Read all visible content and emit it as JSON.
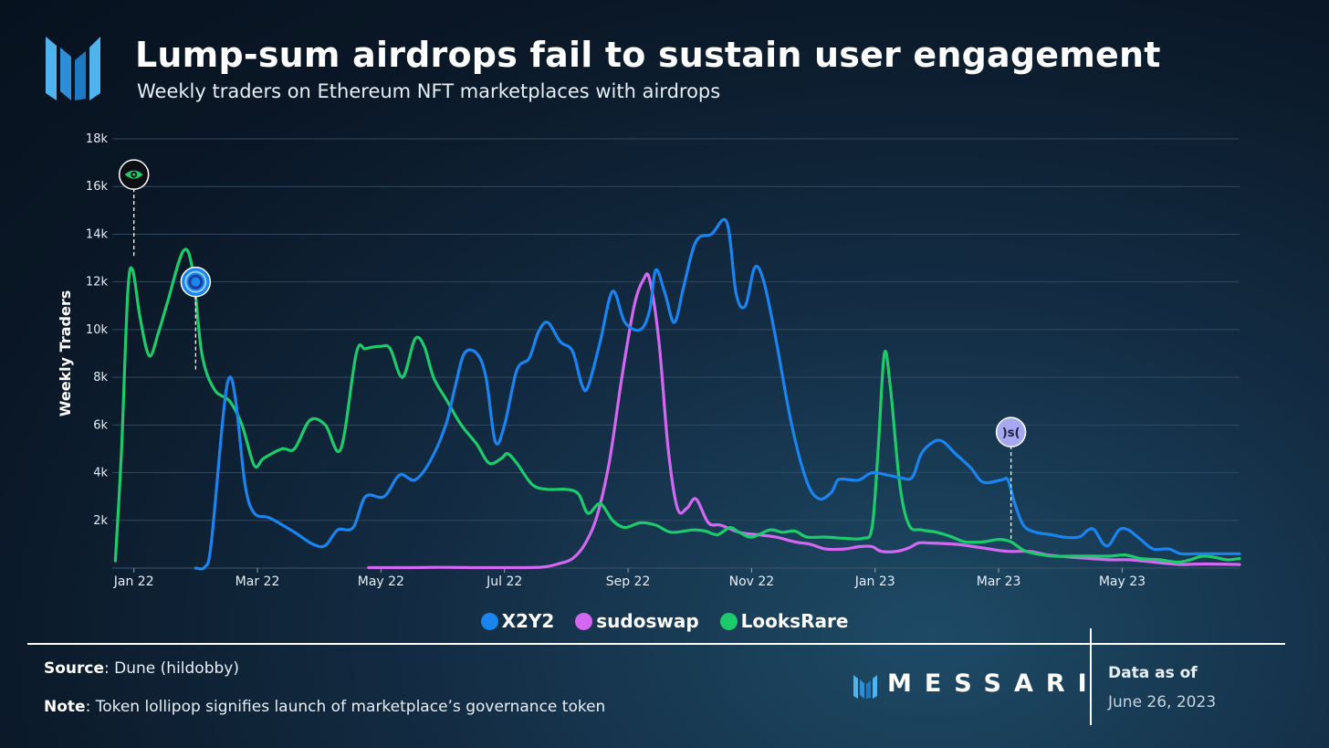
{
  "header": {
    "title": "Lump-sum airdrops fail to sustain user engagement",
    "subtitle": "Weekly traders on Ethereum NFT marketplaces with airdrops"
  },
  "chart_data": {
    "type": "line",
    "ylabel": "Weekly Traders",
    "ylim": [
      0,
      18000
    ],
    "y_ticks": [
      "2k",
      "4k",
      "6k",
      "8k",
      "10k",
      "12k",
      "14k",
      "16k",
      "18k"
    ],
    "x_tick_labels": [
      "Jan 22",
      "Mar 22",
      "May 22",
      "Jul 22",
      "Sep 22",
      "Nov 22",
      "Jan 23",
      "Mar 23",
      "May 23"
    ],
    "x_range": [
      -0.35,
      17.9
    ],
    "x_unit": "months since Jan 2022",
    "grid": true,
    "legend_position": "bottom-center",
    "series": [
      {
        "name": "X2Y2",
        "color": "#1a84f0",
        "points": [
          [
            1.0,
            0
          ],
          [
            1.15,
            50
          ],
          [
            1.25,
            1000
          ],
          [
            1.45,
            6500
          ],
          [
            1.55,
            8000
          ],
          [
            1.65,
            7000
          ],
          [
            1.8,
            3500
          ],
          [
            1.95,
            2300
          ],
          [
            2.2,
            2100
          ],
          [
            2.6,
            1500
          ],
          [
            2.9,
            1000
          ],
          [
            3.1,
            950
          ],
          [
            3.3,
            1600
          ],
          [
            3.55,
            1700
          ],
          [
            3.75,
            3000
          ],
          [
            4.05,
            3000
          ],
          [
            4.3,
            3900
          ],
          [
            4.55,
            3700
          ],
          [
            4.8,
            4500
          ],
          [
            5.05,
            6000
          ],
          [
            5.2,
            7600
          ],
          [
            5.35,
            9000
          ],
          [
            5.55,
            9000
          ],
          [
            5.7,
            8000
          ],
          [
            5.85,
            5300
          ],
          [
            6.0,
            6000
          ],
          [
            6.2,
            8300
          ],
          [
            6.4,
            8800
          ],
          [
            6.55,
            9900
          ],
          [
            6.7,
            10300
          ],
          [
            6.9,
            9500
          ],
          [
            7.1,
            9100
          ],
          [
            7.25,
            7700
          ],
          [
            7.35,
            7600
          ],
          [
            7.55,
            9500
          ],
          [
            7.75,
            11600
          ],
          [
            7.95,
            10300
          ],
          [
            8.2,
            10000
          ],
          [
            8.35,
            10800
          ],
          [
            8.45,
            12500
          ],
          [
            8.6,
            11500
          ],
          [
            8.75,
            10300
          ],
          [
            8.9,
            11800
          ],
          [
            9.1,
            13700
          ],
          [
            9.35,
            14000
          ],
          [
            9.6,
            14500
          ],
          [
            9.75,
            11500
          ],
          [
            9.9,
            11000
          ],
          [
            10.05,
            12600
          ],
          [
            10.2,
            12000
          ],
          [
            10.4,
            9500
          ],
          [
            10.65,
            6000
          ],
          [
            10.9,
            3600
          ],
          [
            11.1,
            2900
          ],
          [
            11.3,
            3200
          ],
          [
            11.4,
            3700
          ],
          [
            11.6,
            3700
          ],
          [
            11.75,
            3700
          ],
          [
            11.95,
            4000
          ],
          [
            12.2,
            3900
          ],
          [
            12.4,
            3800
          ],
          [
            12.6,
            3800
          ],
          [
            12.75,
            4800
          ],
          [
            12.95,
            5300
          ],
          [
            13.1,
            5300
          ],
          [
            13.3,
            4800
          ],
          [
            13.55,
            4200
          ],
          [
            13.75,
            3600
          ],
          [
            14.05,
            3700
          ],
          [
            14.15,
            3700
          ],
          [
            14.25,
            2800
          ],
          [
            14.4,
            1800
          ],
          [
            14.6,
            1500
          ],
          [
            14.85,
            1400
          ],
          [
            15.05,
            1300
          ],
          [
            15.3,
            1300
          ],
          [
            15.45,
            1600
          ],
          [
            15.55,
            1600
          ],
          [
            15.7,
            1000
          ],
          [
            15.8,
            1000
          ],
          [
            15.95,
            1600
          ],
          [
            16.1,
            1600
          ],
          [
            16.3,
            1200
          ],
          [
            16.5,
            800
          ],
          [
            16.75,
            800
          ],
          [
            16.95,
            600
          ],
          [
            17.2,
            600
          ],
          [
            17.5,
            600
          ],
          [
            17.8,
            600
          ],
          [
            17.9,
            600
          ]
        ]
      },
      {
        "name": "sudoswap",
        "color": "#d468f2",
        "points": [
          [
            3.8,
            20
          ],
          [
            4.5,
            20
          ],
          [
            5.0,
            30
          ],
          [
            5.5,
            20
          ],
          [
            6.0,
            20
          ],
          [
            6.6,
            40
          ],
          [
            6.9,
            200
          ],
          [
            7.1,
            400
          ],
          [
            7.3,
            1000
          ],
          [
            7.5,
            2200
          ],
          [
            7.7,
            4500
          ],
          [
            7.9,
            8000
          ],
          [
            8.1,
            11000
          ],
          [
            8.25,
            12100
          ],
          [
            8.35,
            12100
          ],
          [
            8.5,
            9500
          ],
          [
            8.65,
            5000
          ],
          [
            8.8,
            2500
          ],
          [
            8.95,
            2500
          ],
          [
            9.1,
            2900
          ],
          [
            9.3,
            1900
          ],
          [
            9.5,
            1800
          ],
          [
            9.8,
            1500
          ],
          [
            10.1,
            1400
          ],
          [
            10.4,
            1300
          ],
          [
            10.7,
            1100
          ],
          [
            10.95,
            1000
          ],
          [
            11.2,
            800
          ],
          [
            11.5,
            800
          ],
          [
            11.75,
            900
          ],
          [
            11.95,
            900
          ],
          [
            12.1,
            700
          ],
          [
            12.35,
            700
          ],
          [
            12.55,
            850
          ],
          [
            12.7,
            1050
          ],
          [
            12.9,
            1050
          ],
          [
            13.3,
            1000
          ],
          [
            13.6,
            900
          ],
          [
            13.85,
            800
          ],
          [
            14.15,
            700
          ],
          [
            14.5,
            700
          ],
          [
            14.8,
            550
          ],
          [
            15.2,
            450
          ],
          [
            15.5,
            400
          ],
          [
            15.8,
            350
          ],
          [
            16.1,
            350
          ],
          [
            16.4,
            280
          ],
          [
            16.7,
            200
          ],
          [
            16.95,
            150
          ],
          [
            17.2,
            170
          ],
          [
            17.5,
            170
          ],
          [
            17.9,
            150
          ]
        ]
      },
      {
        "name": "LooksRare",
        "color": "#1ccc6b",
        "points": [
          [
            -0.3,
            300
          ],
          [
            -0.2,
            5000
          ],
          [
            -0.1,
            11500
          ],
          [
            -0.02,
            12500
          ],
          [
            0.1,
            10500
          ],
          [
            0.25,
            8900
          ],
          [
            0.4,
            9900
          ],
          [
            0.55,
            11200
          ],
          [
            0.8,
            13300
          ],
          [
            0.95,
            12500
          ],
          [
            1.1,
            9000
          ],
          [
            1.3,
            7500
          ],
          [
            1.55,
            7000
          ],
          [
            1.75,
            6000
          ],
          [
            1.95,
            4300
          ],
          [
            2.1,
            4600
          ],
          [
            2.4,
            5000
          ],
          [
            2.6,
            5000
          ],
          [
            2.85,
            6200
          ],
          [
            3.1,
            6000
          ],
          [
            3.35,
            5000
          ],
          [
            3.6,
            9000
          ],
          [
            3.75,
            9200
          ],
          [
            4.0,
            9300
          ],
          [
            4.15,
            9200
          ],
          [
            4.35,
            8000
          ],
          [
            4.55,
            9600
          ],
          [
            4.7,
            9300
          ],
          [
            4.85,
            8000
          ],
          [
            5.05,
            7100
          ],
          [
            5.3,
            6000
          ],
          [
            5.55,
            5200
          ],
          [
            5.75,
            4400
          ],
          [
            5.95,
            4600
          ],
          [
            6.05,
            4800
          ],
          [
            6.2,
            4400
          ],
          [
            6.45,
            3500
          ],
          [
            6.7,
            3300
          ],
          [
            7.0,
            3300
          ],
          [
            7.2,
            3100
          ],
          [
            7.35,
            2300
          ],
          [
            7.55,
            2700
          ],
          [
            7.75,
            2000
          ],
          [
            7.95,
            1700
          ],
          [
            8.2,
            1900
          ],
          [
            8.45,
            1800
          ],
          [
            8.7,
            1500
          ],
          [
            9.05,
            1600
          ],
          [
            9.25,
            1550
          ],
          [
            9.45,
            1400
          ],
          [
            9.65,
            1700
          ],
          [
            9.8,
            1500
          ],
          [
            10.0,
            1300
          ],
          [
            10.3,
            1600
          ],
          [
            10.5,
            1500
          ],
          [
            10.7,
            1550
          ],
          [
            10.9,
            1300
          ],
          [
            11.2,
            1300
          ],
          [
            11.5,
            1250
          ],
          [
            11.8,
            1250
          ],
          [
            11.95,
            1700
          ],
          [
            12.05,
            5000
          ],
          [
            12.15,
            9000
          ],
          [
            12.25,
            7500
          ],
          [
            12.4,
            3500
          ],
          [
            12.55,
            1800
          ],
          [
            12.75,
            1600
          ],
          [
            13.0,
            1500
          ],
          [
            13.25,
            1300
          ],
          [
            13.45,
            1100
          ],
          [
            13.75,
            1100
          ],
          [
            14.0,
            1200
          ],
          [
            14.2,
            1100
          ],
          [
            14.4,
            750
          ],
          [
            14.6,
            600
          ],
          [
            14.9,
            500
          ],
          [
            15.2,
            500
          ],
          [
            15.5,
            500
          ],
          [
            15.8,
            500
          ],
          [
            16.05,
            550
          ],
          [
            16.3,
            400
          ],
          [
            16.6,
            350
          ],
          [
            16.9,
            250
          ],
          [
            17.1,
            350
          ],
          [
            17.3,
            500
          ],
          [
            17.5,
            450
          ],
          [
            17.7,
            350
          ],
          [
            17.9,
            400
          ]
        ]
      }
    ],
    "annotations": [
      {
        "label": "LooksRare token launch",
        "x": 0.0,
        "y": 16500,
        "icon": "looksrare-eye-icon",
        "color": "#0b0f14"
      },
      {
        "label": "X2Y2 token launch",
        "x": 1.0,
        "y": 12000,
        "icon": "x2y2-ring-icon",
        "color": "#1a84f0"
      },
      {
        "label": "sudoswap token launch",
        "x": 14.2,
        "y": 5700,
        "icon": "sudoswap-logo-icon",
        "color": "#a6a8f2",
        "text": ")s("
      }
    ]
  },
  "legend": {
    "items": [
      {
        "label": "X2Y2",
        "color": "#1a84f0"
      },
      {
        "label": "sudoswap",
        "color": "#d468f2"
      },
      {
        "label": "LooksRare",
        "color": "#1ccc6b"
      }
    ]
  },
  "footer": {
    "source_label": "Source",
    "source_text": ": Dune (hildobby)",
    "note_label": "Note",
    "note_text": ": Token lollipop signifies launch of marketplace’s governance token",
    "brand": "MESSARI",
    "as_of_label": "Data as of",
    "as_of_date": "June 26, 2023"
  }
}
